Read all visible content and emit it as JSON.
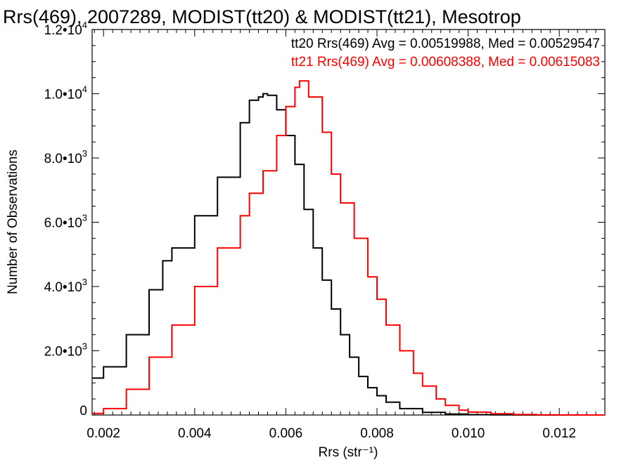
{
  "chart_data": {
    "type": "line",
    "title": "Rrs(469), 2007289, MODIST(tt20) & MODIST(tt21), Mesotrop",
    "xlabel": "Rrs (str⁻¹)",
    "ylabel": "Number of Observations",
    "xlim": [
      0.00175,
      0.013
    ],
    "ylim": [
      0,
      12000
    ],
    "x_ticks": [
      0.002,
      0.004,
      0.006,
      0.008,
      0.01,
      0.012
    ],
    "x_tick_labels": [
      "0.002",
      "0.004",
      "0.006",
      "0.008",
      "0.010",
      "0.012"
    ],
    "y_ticks": [
      0,
      2000,
      4000,
      6000,
      8000,
      10000,
      12000
    ],
    "y_tick_labels": [
      {
        "mantissa": "0",
        "exponent": ""
      },
      {
        "mantissa": "2.0•10",
        "exponent": "3"
      },
      {
        "mantissa": "4.0•10",
        "exponent": "3"
      },
      {
        "mantissa": "6.0•10",
        "exponent": "3"
      },
      {
        "mantissa": "8.0•10",
        "exponent": "3"
      },
      {
        "mantissa": "1.0•10",
        "exponent": "4"
      },
      {
        "mantissa": "1.2•10",
        "exponent": "4"
      }
    ],
    "grid": false,
    "legend_position": "top-right",
    "series": [
      {
        "name": "tt20",
        "color": "#000000",
        "legend": "tt20 Rrs(469) Avg = 0.00519988, Med = 0.00529547",
        "x": [
          0.00175,
          0.002,
          0.0025,
          0.003,
          0.0033,
          0.0035,
          0.004,
          0.0045,
          0.005,
          0.0052,
          0.0054,
          0.0055,
          0.0056,
          0.0058,
          0.006,
          0.0062,
          0.0064,
          0.0066,
          0.0068,
          0.007,
          0.0072,
          0.0074,
          0.0076,
          0.0078,
          0.008,
          0.0082,
          0.0085,
          0.009,
          0.0095,
          0.01,
          0.0105,
          0.011,
          0.0115,
          0.012,
          0.013
        ],
        "values": [
          1150,
          1500,
          2500,
          3900,
          4800,
          5200,
          6200,
          7400,
          9100,
          9800,
          9900,
          10000,
          9950,
          9500,
          8700,
          7800,
          6400,
          5200,
          4200,
          3300,
          2500,
          1800,
          1200,
          850,
          600,
          400,
          200,
          80,
          30,
          10,
          5,
          2,
          0,
          0,
          0
        ]
      },
      {
        "name": "tt21",
        "color": "#ff0000",
        "legend": "tt21 Rrs(469) Avg = 0.00608388, Med = 0.00615083",
        "x": [
          0.00175,
          0.002,
          0.0025,
          0.003,
          0.0035,
          0.004,
          0.0045,
          0.005,
          0.0052,
          0.0055,
          0.0058,
          0.006,
          0.0062,
          0.0063,
          0.0065,
          0.0068,
          0.007,
          0.0072,
          0.0075,
          0.0078,
          0.008,
          0.0082,
          0.0085,
          0.0088,
          0.009,
          0.0093,
          0.0095,
          0.0098,
          0.01,
          0.0105,
          0.011,
          0.0115,
          0.012,
          0.0125,
          0.013
        ],
        "values": [
          50,
          200,
          800,
          1800,
          2800,
          4000,
          5200,
          6200,
          6900,
          7600,
          8700,
          9600,
          10200,
          10400,
          9900,
          8800,
          7500,
          6600,
          5500,
          4300,
          3600,
          2800,
          2000,
          1300,
          900,
          500,
          300,
          150,
          90,
          40,
          15,
          5,
          2,
          0,
          0
        ]
      }
    ]
  }
}
